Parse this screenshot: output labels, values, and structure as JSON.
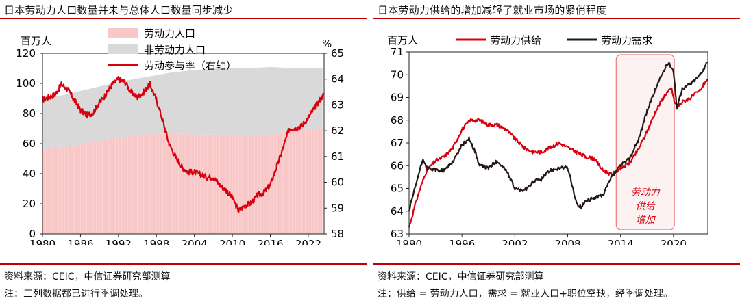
{
  "left": {
    "title": "日本劳动力人口数量并未与总体人口数量同步减少",
    "source": "资料来源：CEIC，中信证券研究部测算",
    "note": "注：三列数据都已进行季调处理。"
  },
  "right": {
    "title": "日本劳动力供给的增加减轻了就业市场的紧俏程度",
    "source": "资料来源：CEIC，中信证券研究部测算",
    "note": "注：供给 = 劳动力人口，需求 = 就业人口+职位空缺，经季调处理。"
  },
  "colors": {
    "accent_red": "#c00000",
    "line_red": "#d7000f",
    "area_pink": "#f8c8c8",
    "area_gray": "#d9d9d9",
    "line_black": "#231815",
    "box_border": "#e06060"
  },
  "chart_data": [
    {
      "type": "area",
      "ylabel_left": "百万人",
      "ylabel_right": "%",
      "ylim": [
        0,
        120
      ],
      "ylim_right": [
        58,
        65
      ],
      "xlim": [
        1980,
        2024.5
      ],
      "x_ticks": [
        1980,
        1986,
        1992,
        1998,
        2004,
        2010,
        2016,
        2022
      ],
      "y_ticks": [
        0,
        20,
        40,
        60,
        80,
        100,
        120
      ],
      "y_ticks_right": [
        58,
        59,
        60,
        61,
        62,
        63,
        64,
        65
      ],
      "legend_position": "top-center",
      "series": [
        {
          "name": "劳动力人口",
          "kind": "area-stacked",
          "x": [
            1980,
            1984,
            1988,
            1992,
            1996,
            2000,
            2004,
            2008,
            2012,
            2016,
            2020,
            2024
          ],
          "values": [
            56,
            58,
            61,
            64,
            66,
            67,
            66,
            66,
            65,
            66,
            69,
            70
          ]
        },
        {
          "name": "非劳动力人口",
          "kind": "area-stacked",
          "x": [
            1980,
            1984,
            1988,
            1992,
            1996,
            2000,
            2004,
            2008,
            2012,
            2016,
            2020,
            2024
          ],
          "values": [
            33,
            35,
            36,
            37,
            38,
            40,
            43,
            44,
            45,
            45,
            41,
            40
          ]
        },
        {
          "name": "劳动参与率（右轴）",
          "kind": "line",
          "axis": "right",
          "x": [
            1980,
            1981,
            1982,
            1983,
            1984,
            1985,
            1986,
            1987,
            1988,
            1989,
            1990,
            1991,
            1992,
            1993,
            1994,
            1995,
            1996,
            1997,
            1998,
            1999,
            2000,
            2001,
            2002,
            2003,
            2004,
            2005,
            2006,
            2007,
            2008,
            2009,
            2010,
            2011,
            2012,
            2013,
            2014,
            2015,
            2016,
            2017,
            2018,
            2019,
            2020,
            2021,
            2022,
            2023,
            2024.4
          ],
          "values": [
            63.2,
            63.3,
            63.4,
            63.8,
            63.6,
            63.2,
            62.8,
            62.6,
            62.7,
            63.1,
            63.4,
            63.8,
            64.0,
            63.9,
            63.5,
            63.3,
            63.5,
            63.8,
            63.2,
            62.4,
            61.5,
            61.0,
            60.6,
            60.4,
            60.4,
            60.3,
            60.2,
            60.2,
            59.9,
            59.7,
            59.4,
            58.9,
            59.1,
            59.2,
            59.5,
            59.6,
            59.9,
            60.6,
            61.3,
            62.1,
            62.1,
            62.2,
            62.5,
            62.9,
            63.4
          ]
        }
      ]
    },
    {
      "type": "line",
      "ylabel": "百万人",
      "ylim": [
        63,
        71
      ],
      "xlim": [
        1990,
        2023.9
      ],
      "x_ticks": [
        1990,
        1996,
        2002,
        2008,
        2014,
        2020
      ],
      "y_ticks": [
        63,
        64,
        65,
        66,
        67,
        68,
        69,
        70,
        71
      ],
      "legend_position": "top",
      "annotation": {
        "text": "劳动力供给增加",
        "lines": [
          "劳动力",
          "供给",
          "增加"
        ],
        "x_range": [
          2013.5,
          2020.1
        ]
      },
      "series": [
        {
          "name": "劳动力供给",
          "x": [
            1990,
            1991,
            1992,
            1993,
            1994,
            1995,
            1996,
            1997,
            1998,
            1999,
            2000,
            2001,
            2002,
            2003,
            2004,
            2005,
            2006,
            2007,
            2008,
            2009,
            2010,
            2011,
            2012,
            2013,
            2014,
            2015,
            2016,
            2017,
            2018,
            2019,
            2019.8,
            2020.1,
            2020.5,
            2021,
            2022,
            2023,
            2023.8
          ],
          "values": [
            63.3,
            64.7,
            65.8,
            66.2,
            66.4,
            66.8,
            67.6,
            68.0,
            68.0,
            67.8,
            67.8,
            67.6,
            67.2,
            66.8,
            66.6,
            66.6,
            66.8,
            67.0,
            66.8,
            66.6,
            66.4,
            66.3,
            65.8,
            65.6,
            65.9,
            66.1,
            66.7,
            67.5,
            68.4,
            69.1,
            69.4,
            68.8,
            68.6,
            68.8,
            69.0,
            69.3,
            69.8
          ]
        },
        {
          "name": "劳动力需求",
          "x": [
            1990,
            1991,
            1991.6,
            1992,
            1993,
            1994,
            1995,
            1996,
            1996.8,
            1997.5,
            1998,
            1999,
            2000,
            2001,
            2002,
            2002.8,
            2003.5,
            2004,
            2005,
            2006,
            2007,
            2008,
            2008.6,
            2009,
            2009.5,
            2010,
            2011,
            2012,
            2013,
            2014,
            2015,
            2016,
            2017,
            2018,
            2018.8,
            2019.4,
            2020,
            2020.4,
            2021,
            2022,
            2023,
            2023.8
          ],
          "values": [
            64.0,
            65.5,
            66.3,
            65.9,
            65.8,
            65.8,
            66.2,
            66.9,
            67.2,
            66.6,
            66.0,
            65.9,
            66.2,
            65.8,
            65.0,
            64.9,
            65.0,
            65.3,
            65.4,
            65.8,
            65.9,
            65.9,
            65.0,
            64.3,
            64.2,
            64.4,
            64.6,
            64.7,
            65.5,
            66.0,
            66.3,
            67.1,
            68.4,
            69.4,
            70.1,
            70.5,
            70.2,
            68.5,
            69.4,
            69.6,
            70.0,
            70.5
          ]
        }
      ]
    }
  ]
}
